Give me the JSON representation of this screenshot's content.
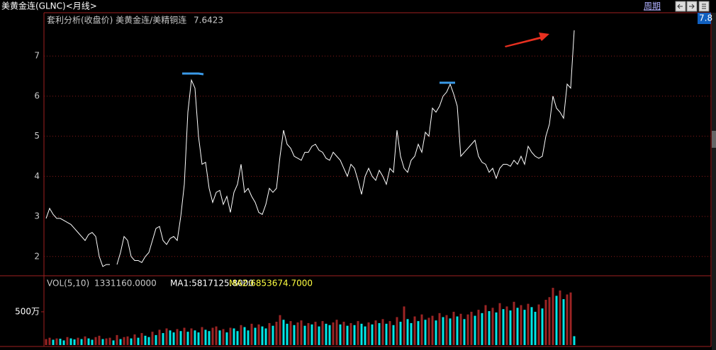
{
  "header": {
    "title": "美黄金连(GLNC)<月线>",
    "period_button": "周期"
  },
  "chart_data": [
    {
      "type": "line",
      "legend_title": "套利分析(收盘价) 美黄金连/美精铜连",
      "legend_value": "7.6423",
      "scale_marker": "7.8",
      "color": "#ffffff",
      "grid": true,
      "grid_color": "#8b1a1a",
      "ylim": [
        1.52,
        8.08
      ],
      "yticks": [
        2,
        3,
        4,
        5,
        6,
        7
      ],
      "values": [
        2.95,
        3.2,
        3.05,
        2.95,
        2.95,
        2.9,
        2.85,
        2.8,
        2.7,
        2.6,
        2.5,
        2.4,
        2.55,
        2.6,
        2.5,
        2.0,
        1.75,
        1.8,
        1.8,
        null,
        1.8,
        2.1,
        2.5,
        2.4,
        2.0,
        1.9,
        1.9,
        1.85,
        2.0,
        2.1,
        2.4,
        2.7,
        2.75,
        2.4,
        2.3,
        2.45,
        2.5,
        2.4,
        3.0,
        3.8,
        5.6,
        6.4,
        6.2,
        5.0,
        4.3,
        4.35,
        3.7,
        3.35,
        3.6,
        3.65,
        3.3,
        3.5,
        3.1,
        3.6,
        3.8,
        4.3,
        3.6,
        3.7,
        3.5,
        3.35,
        3.1,
        3.05,
        3.3,
        3.7,
        3.6,
        3.7,
        4.5,
        5.15,
        4.8,
        4.7,
        4.5,
        4.45,
        4.4,
        4.6,
        4.6,
        4.75,
        4.8,
        4.65,
        4.6,
        4.45,
        4.4,
        4.6,
        4.5,
        4.4,
        4.2,
        4.0,
        4.3,
        4.2,
        3.9,
        3.55,
        4.0,
        4.2,
        4.0,
        3.9,
        4.15,
        4.0,
        3.8,
        4.2,
        4.1,
        5.15,
        4.5,
        4.2,
        4.1,
        4.4,
        4.5,
        4.8,
        4.6,
        5.1,
        5.0,
        5.7,
        5.6,
        5.75,
        6.0,
        6.1,
        6.3,
        6.05,
        5.75,
        4.5,
        4.6,
        4.7,
        4.8,
        4.9,
        4.5,
        4.35,
        4.3,
        4.1,
        4.2,
        3.95,
        4.2,
        4.3,
        4.3,
        4.25,
        4.4,
        4.3,
        4.5,
        4.3,
        4.75,
        4.6,
        4.5,
        4.45,
        4.5,
        5.0,
        5.3,
        6.0,
        5.7,
        5.6,
        5.45,
        6.3,
        6.2,
        7.6423
      ]
    },
    {
      "type": "bar",
      "legend_items": [
        "VOL(5,10)",
        "1331160.0000",
        "MA1:5817125.8000",
        "MA2:6853674.7000"
      ],
      "up_color": "#d03030",
      "down_color": "#00e8e8",
      "ylim": [
        0,
        10200000
      ],
      "yticks": [
        {
          "value": 5000000,
          "label": "500万"
        }
      ],
      "values": [
        900000,
        1100000,
        800000,
        1000000,
        950000,
        700000,
        1200000,
        1000000,
        850000,
        1100000,
        900000,
        1300000,
        1000000,
        800000,
        1200000,
        1400000,
        900000,
        1000000,
        1100000,
        700000,
        1500000,
        900000,
        1200000,
        1300000,
        1000000,
        1600000,
        1100000,
        1800000,
        1400000,
        1200000,
        2000000,
        1500000,
        2300000,
        1800000,
        2500000,
        2200000,
        1900000,
        2400000,
        2100000,
        2600000,
        2000000,
        2500000,
        2200000,
        1900000,
        2700000,
        2300000,
        2100000,
        2600000,
        2800000,
        2200000,
        2400000,
        1900000,
        2600000,
        2500000,
        2100000,
        3000000,
        2700000,
        2200000,
        3200000,
        2600000,
        3100000,
        2800000,
        2500000,
        3300000,
        2900000,
        3500000,
        4500000,
        3800000,
        3200000,
        3600000,
        3000000,
        3400000,
        3700000,
        2900000,
        3300000,
        3100000,
        3500000,
        2800000,
        3600000,
        3200000,
        3000000,
        3400000,
        3800000,
        3100000,
        3500000,
        2900000,
        3300000,
        3000000,
        3600000,
        3200000,
        2800000,
        3400000,
        3100000,
        3700000,
        3300000,
        3900000,
        3200000,
        3600000,
        3000000,
        4200000,
        3500000,
        5800000,
        3900000,
        3300000,
        4300000,
        3600000,
        4600000,
        3800000,
        4100000,
        4400000,
        3700000,
        4800000,
        4200000,
        4500000,
        4000000,
        5000000,
        4300000,
        4700000,
        3900000,
        4600000,
        5000000,
        4400000,
        5300000,
        4800000,
        6000000,
        5100000,
        5600000,
        4900000,
        6300000,
        5400000,
        5800000,
        5200000,
        6500000,
        5600000,
        6000000,
        5300000,
        6200000,
        5700000,
        5000000,
        6100000,
        5500000,
        6800000,
        7200000,
        8600000,
        7400000,
        8200000,
        6900000,
        7600000,
        7900000,
        1331160
      ]
    }
  ]
}
